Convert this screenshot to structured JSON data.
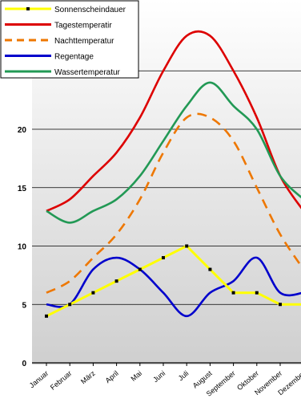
{
  "chart_data": {
    "type": "line",
    "title": "",
    "xlabel": "",
    "ylabel": "",
    "ylim": [
      0,
      30
    ],
    "yticks": [
      0,
      5,
      10,
      15,
      20
    ],
    "grid": true,
    "legend_position": "top-left",
    "categories": [
      "Januar",
      "Februar",
      "März",
      "April",
      "Mai",
      "Juni",
      "Juli",
      "August",
      "September",
      "Oktober",
      "November",
      "Dezember"
    ],
    "series": [
      {
        "name": "Sonnenscheindauer",
        "color": "#ffff00",
        "dashed": false,
        "markers": true,
        "values": [
          4,
          5,
          6,
          7,
          8,
          9,
          10,
          8,
          6,
          6,
          5,
          5
        ]
      },
      {
        "name": "Tagestemperatir",
        "color": "#dd0000",
        "dashed": false,
        "markers": false,
        "values": [
          13,
          14,
          16,
          18,
          21,
          25,
          28,
          28,
          25,
          21,
          16,
          13
        ]
      },
      {
        "name": "Nachttemperatur",
        "color": "#ee7700",
        "dashed": true,
        "markers": false,
        "values": [
          6,
          7,
          9,
          11,
          14,
          18,
          21,
          21,
          19,
          15,
          11,
          8
        ]
      },
      {
        "name": "Regentage",
        "color": "#0000cc",
        "dashed": false,
        "markers": false,
        "values": [
          5,
          5,
          8,
          9,
          8,
          6,
          4,
          6,
          7,
          9,
          6,
          6
        ]
      },
      {
        "name": "Wassertemperatur",
        "color": "#229955",
        "dashed": false,
        "markers": false,
        "values": [
          13,
          12,
          13,
          14,
          16,
          19,
          22,
          24,
          22,
          20,
          16,
          14
        ]
      }
    ]
  }
}
